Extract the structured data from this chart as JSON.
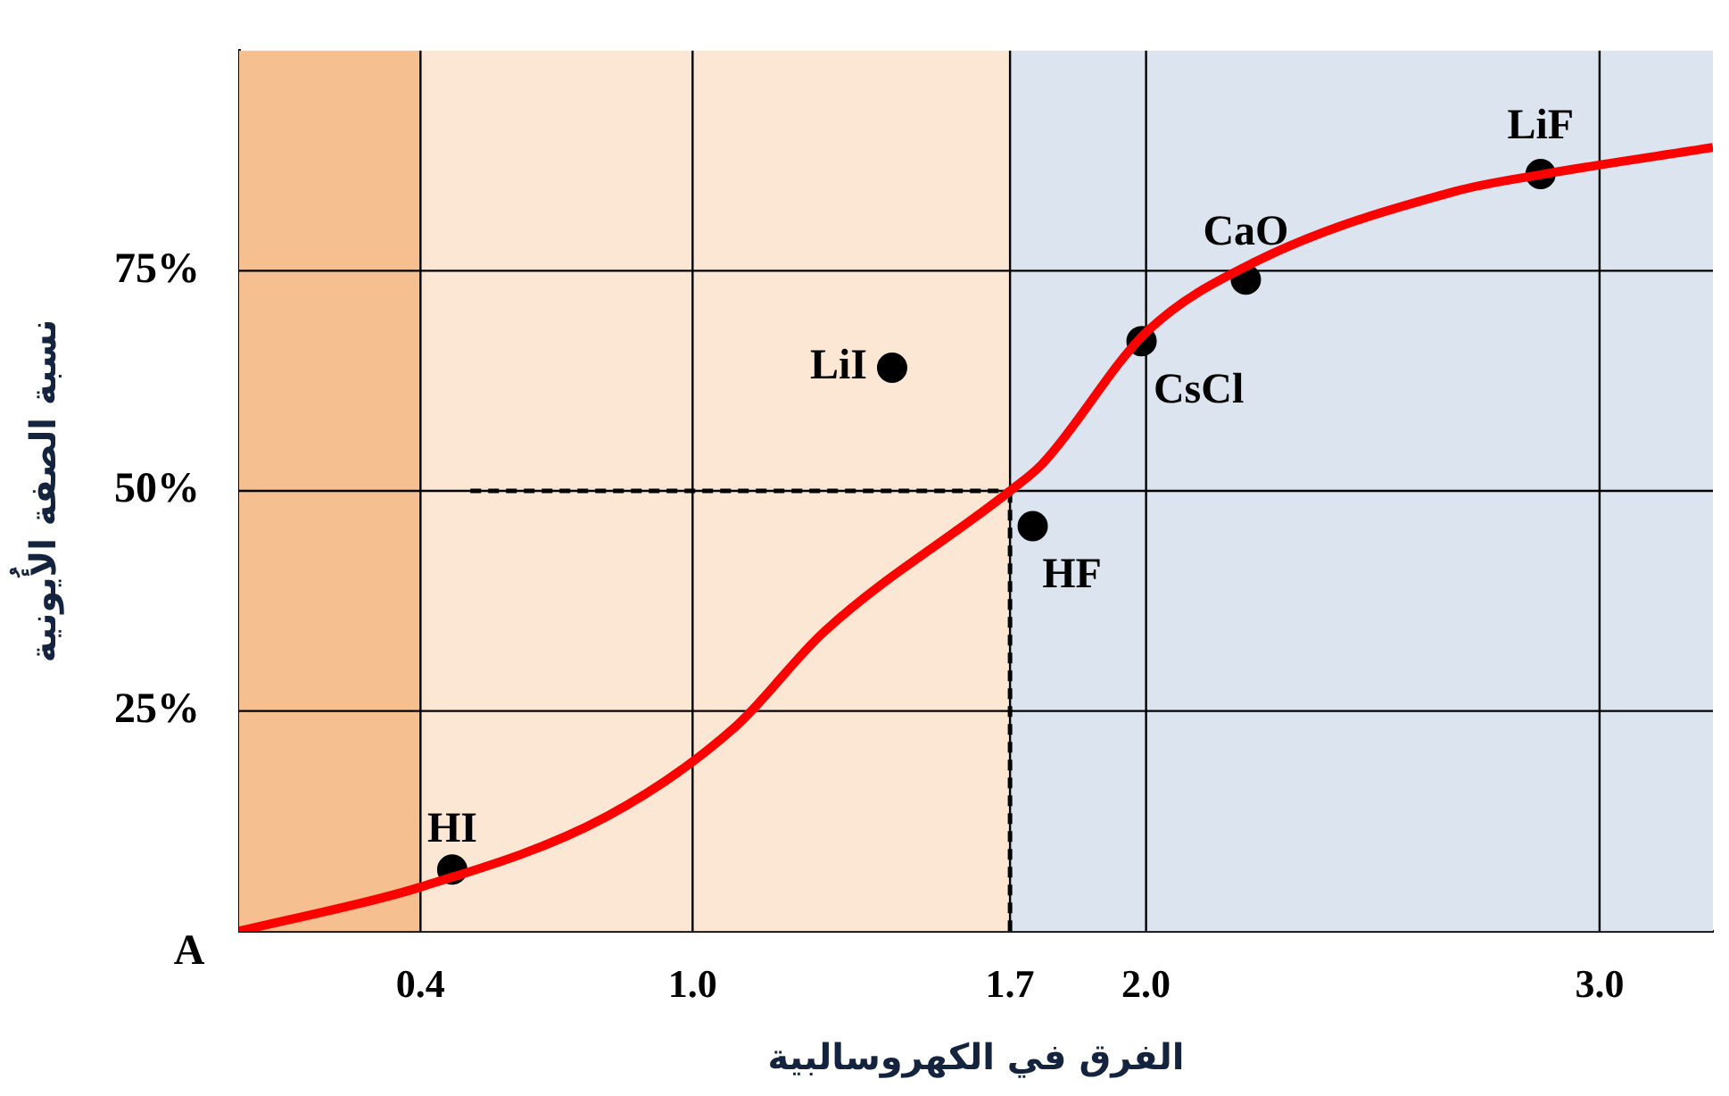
{
  "chart_data": {
    "type": "line",
    "xlabel": "الفرق في الكهروسالبية",
    "ylabel": "نسبة الصفة الأُيونية",
    "xlim": [
      0,
      3.25
    ],
    "ylim": [
      0,
      100
    ],
    "xticks": [
      0.4,
      {
        "value": 1,
        "label": "1.0"
      },
      1.7,
      {
        "value": 2,
        "label": "2.0"
      },
      {
        "value": 3,
        "label": "3.0"
      }
    ],
    "yticks": [
      {
        "value": 25,
        "label": "25%"
      },
      {
        "value": 50,
        "label": "50%"
      },
      {
        "value": 75,
        "label": "75%"
      }
    ],
    "series": [
      {
        "color": "#ff0000",
        "x": [
          0,
          0.4,
          0.81,
          1.09,
          1.29,
          1.7,
          1.77,
          2.0,
          2.24,
          2.68,
          2.88,
          3.25
        ],
        "values": [
          0,
          5,
          13,
          23,
          34,
          50,
          53,
          68,
          76,
          84,
          86,
          89
        ]
      },
      {
        "type": "scatter",
        "color": "#000000",
        "marker": "circle",
        "x": [
          0.47,
          1.44,
          1.75,
          1.99,
          2.22,
          2.87
        ],
        "values": [
          7,
          64,
          46,
          67,
          74,
          86
        ]
      }
    ],
    "bands": [
      {
        "axis": "x",
        "from": 0,
        "to": 0.4,
        "color": "#f5bf8f"
      },
      {
        "axis": "x",
        "from": 0.4,
        "to": 1.7,
        "color": "#fce6d4"
      },
      {
        "axis": "x",
        "from": 1.7,
        "to": 3.25,
        "color": "#dce4ef"
      }
    ],
    "ref_lines": [
      {
        "axis": "y",
        "value": 50,
        "line_style": "dashed",
        "color": "#000000"
      },
      {
        "axis": "x",
        "value": 1.7,
        "line_style": "dashed",
        "color": "#000000"
      }
    ],
    "annotations": [
      {
        "text": "A",
        "x": 0,
        "y": 0
      },
      {
        "text": "HI",
        "x": 0.47,
        "y": 7
      },
      {
        "text": "LiI",
        "x": 1.44,
        "y": 64
      },
      {
        "text": "HF",
        "x": 1.75,
        "y": 46
      },
      {
        "text": "CsCl",
        "x": 1.99,
        "y": 67
      },
      {
        "text": "CaO",
        "x": 2.22,
        "y": 74
      },
      {
        "text": "LiF",
        "x": 2.87,
        "y": 86
      }
    ],
    "grid": true,
    "legend": false
  }
}
